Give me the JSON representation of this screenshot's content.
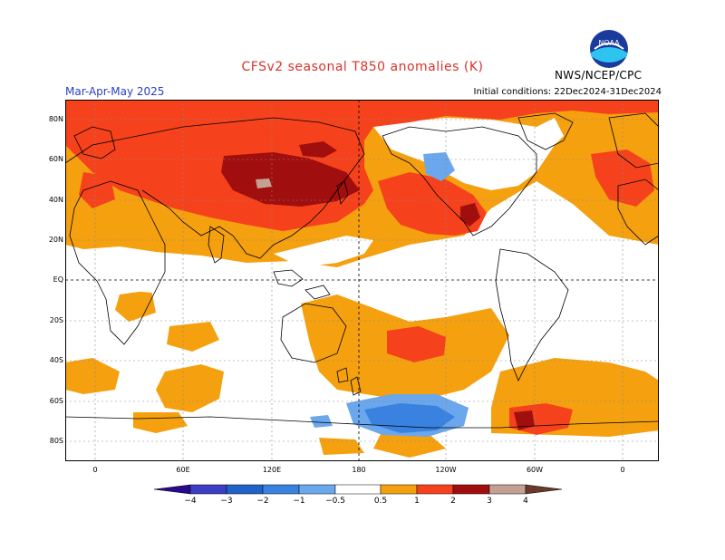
{
  "header": {
    "title": "CFSv2 seasonal T850 anomalies (K)",
    "season": "Mar-Apr-May 2025",
    "initial_conditions": "Initial conditions: 22Dec2024-31Dec2024",
    "agency": "NWS/NCEP/CPC",
    "logo_text": "NOAA"
  },
  "map": {
    "lat_labels": [
      "80N",
      "60N",
      "40N",
      "20N",
      "EQ",
      "20S",
      "40S",
      "60S",
      "80S"
    ],
    "lon_labels": [
      "0",
      "60E",
      "120E",
      "180",
      "120W",
      "60W",
      "0"
    ],
    "colors": {
      "pos_0_5": "#f5a00f",
      "pos_1": "#f5421c",
      "pos_2": "#a10e0e",
      "pos_3": "#c4a093",
      "neg_0_5": "#6aa7ec",
      "neg_1": "#3a82e0",
      "neg_2": "#1f62c8",
      "neg_3": "#3c3ec4",
      "neg_4": "#2a0a8c",
      "pos_4": "#6b3a2a"
    }
  },
  "colorbar": {
    "labels": [
      "−4",
      "−3",
      "−2",
      "−1",
      "−0.5",
      "0.5",
      "1",
      "2",
      "3",
      "4"
    ]
  }
}
